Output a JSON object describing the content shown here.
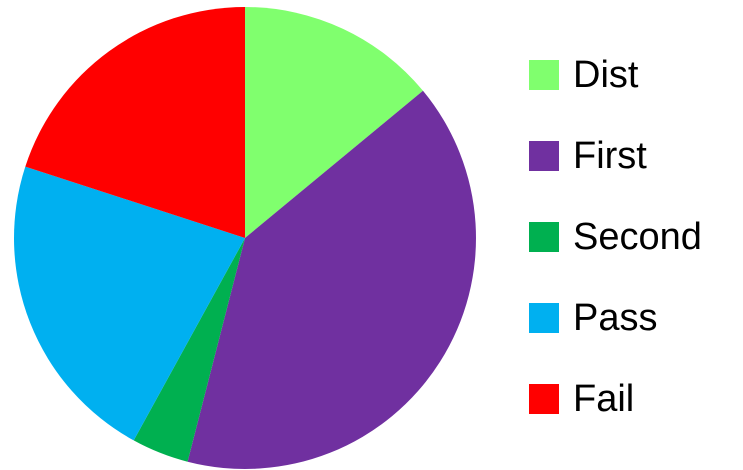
{
  "chart_data": {
    "type": "pie",
    "categories": [
      "Dist",
      "First",
      "Second",
      "Pass",
      "Fail"
    ],
    "values": [
      14,
      40,
      4,
      22,
      20
    ],
    "colors": [
      "#80FF6E",
      "#7030A0",
      "#00B050",
      "#00B0F0",
      "#FF0000"
    ],
    "start_angle_deg": 0,
    "direction": "clockwise",
    "legend_position": "right",
    "title": ""
  }
}
